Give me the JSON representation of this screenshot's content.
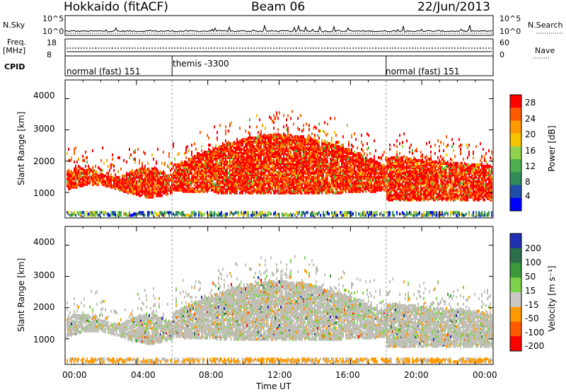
{
  "header": {
    "station": "Hokkaido (fitACF)",
    "beam": "Beam 06",
    "date": "22/Jun/2013"
  },
  "panels": {
    "nsky_label": "N.Sky",
    "nsky_ticks": [
      "10^5",
      "10^0"
    ],
    "nsearch_label": "N.Search",
    "nsearch_ticks": [
      "10^5",
      "10^0"
    ],
    "freq_label": "Freq.",
    "freq_unit": "[MHz]",
    "freq_ticks": [
      "18",
      "8"
    ],
    "nave_label": "Nave",
    "nave_ticks": [
      "60",
      "0"
    ],
    "cpid_label": "CPID",
    "cpid_modes": [
      "normal (fast) 151",
      "themis -3300",
      "normal (fast) 151"
    ]
  },
  "x_axis": {
    "label": "Time UT",
    "ticks": [
      "00:00",
      "04:00",
      "08:00",
      "12:00",
      "16:00",
      "20:00",
      "00:00"
    ]
  },
  "power_panel": {
    "ylabel": "Slant Range [km]",
    "yticks": [
      "4000",
      "3000",
      "2000",
      "1000"
    ],
    "colorbar_label": "Power [dB]",
    "colorbar_ticks": [
      "28",
      "24",
      "20",
      "16",
      "12",
      "8",
      "4"
    ],
    "colors": [
      "#0000ff",
      "#1f4faa",
      "#2e8b57",
      "#4caf50",
      "#8fd34d",
      "#f5c400",
      "#ff9a00",
      "#ff5a00",
      "#ff0000"
    ]
  },
  "velocity_panel": {
    "ylabel": "Slant Range [km]",
    "yticks": [
      "4000",
      "3000",
      "2000",
      "1000"
    ],
    "colorbar_label": "Velocity [m s⁻¹]",
    "colorbar_ticks": [
      "200",
      "100",
      "50",
      "15",
      "-15",
      "-50",
      "-100",
      "-200"
    ],
    "colors": [
      "#2030b0",
      "#2a6f4a",
      "#3a9a3a",
      "#7cd34b",
      "#c8c8c0",
      "#ff9a00",
      "#ff5a00",
      "#ff0000"
    ],
    "ground_scatter_color": "#c0c0b8"
  },
  "chart_data": {
    "type": "heatmap",
    "title": "Hokkaido (fitACF) Beam 06 22/Jun/2013",
    "xlabel": "Time UT",
    "ylabel": "Slant Range [km]",
    "xlim_hours": [
      0,
      24
    ],
    "ylim_km": [
      180,
      4600
    ],
    "cpid_segments": [
      {
        "name": "normal (fast) 151",
        "start_h": 0,
        "end_h": 6
      },
      {
        "name": "themis -3300",
        "start_h": 6,
        "end_h": 18
      },
      {
        "name": "normal (fast) 151",
        "start_h": 18,
        "end_h": 24
      }
    ],
    "power_scale_db": [
      4,
      8,
      12,
      16,
      20,
      24,
      28
    ],
    "velocity_scale_ms": [
      -200,
      -100,
      -50,
      -15,
      15,
      50,
      100,
      200
    ],
    "echo_region_power": [
      {
        "t_start_h": 0.2,
        "t_end_h": 6,
        "range_km": [
          1000,
          1600
        ],
        "power_db": 26
      },
      {
        "t_start_h": 6,
        "t_end_h": 18,
        "range_km": [
          1000,
          2700
        ],
        "power_db": 28
      },
      {
        "t_start_h": 18,
        "t_end_h": 24,
        "range_km": [
          700,
          2200
        ],
        "power_db": 24
      }
    ]
  }
}
